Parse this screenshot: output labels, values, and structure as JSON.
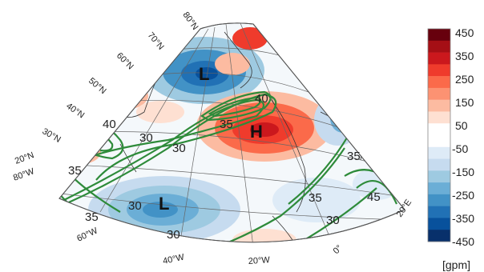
{
  "map": {
    "pressure_labels": {
      "low1": "L",
      "high": "H",
      "low2": "L"
    },
    "contour_labels": [
      "40",
      "40",
      "35",
      "30",
      "35",
      "30",
      "35",
      "30",
      "30",
      "35",
      "30",
      "35",
      "45"
    ],
    "lat_labels": [
      "80°N",
      "70°N",
      "60°N",
      "50°N",
      "40°N",
      "30°N",
      "20°N"
    ],
    "lon_labels": [
      "80°W",
      "60°W",
      "40°W",
      "20°W",
      "0°",
      "20°E"
    ]
  },
  "legend": {
    "unit": "[gpm]",
    "ticks": [
      "450",
      "350",
      "250",
      "150",
      "50",
      "-50",
      "-150",
      "-250",
      "-350",
      "-450"
    ],
    "colors": [
      "#67000d",
      "#a50f15",
      "#cb181d",
      "#ef3b2c",
      "#fb6a4a",
      "#fc9272",
      "#fcbba1",
      "#fee0d2",
      "#ffffff",
      "#ffffff",
      "#deebf7",
      "#c6dbef",
      "#9ecae1",
      "#6baed6",
      "#4292c6",
      "#2171b5",
      "#08519c",
      "#08306b"
    ]
  }
}
